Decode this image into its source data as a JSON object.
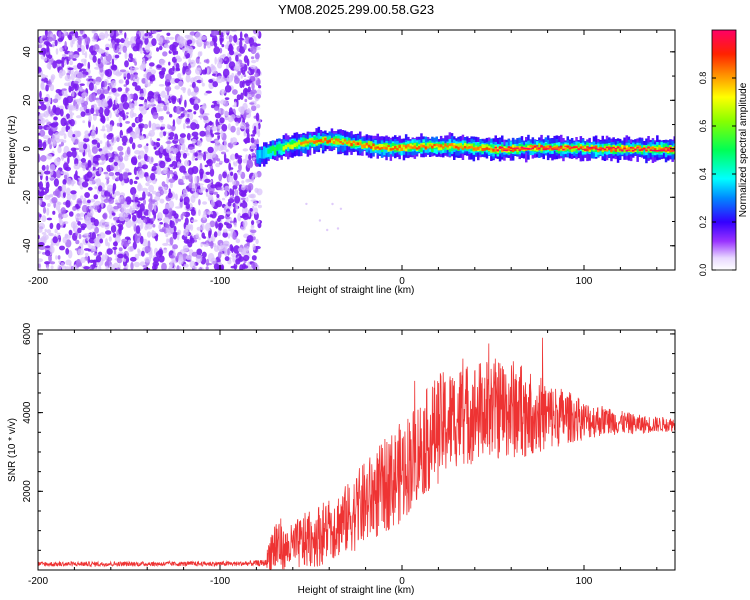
{
  "title": "YM08.2025.299.00.58.G23",
  "chart_data": [
    {
      "type": "heatmap",
      "title": "YM08.2025.299.00.58.G23",
      "xlabel": "Height of straight line (km)",
      "ylabel": "Frequency (Hz)",
      "xlim": [
        -200,
        150
      ],
      "ylim": [
        -50,
        49
      ],
      "xticks": [
        -200,
        -100,
        0,
        100
      ],
      "yticks": [
        -40,
        -20,
        0,
        20,
        40
      ],
      "noise_region_x": [
        -200,
        -80
      ],
      "ridge": {
        "description": "Doppler frequency ridge (narrow band of high amplitude)",
        "x": [
          -80,
          -70,
          -60,
          -50,
          -40,
          -30,
          -20,
          -10,
          0,
          10,
          20,
          30,
          40,
          50,
          60,
          70,
          80,
          90,
          100,
          110,
          120,
          130,
          140,
          150
        ],
        "y": [
          -3,
          0,
          1.5,
          3,
          3.5,
          2.5,
          1.5,
          0.5,
          0.5,
          1,
          1,
          1,
          0.5,
          0,
          0,
          0.5,
          0.5,
          0.3,
          0,
          0,
          0,
          0,
          -0.2,
          -0.3
        ],
        "peak_amplitude": [
          0.35,
          0.55,
          0.75,
          0.9,
          0.95,
          0.9,
          0.85,
          0.85,
          0.85,
          0.9,
          0.9,
          0.9,
          0.9,
          0.95,
          0.95,
          0.95,
          0.95,
          0.95,
          1.0,
          1.0,
          1.0,
          0.95,
          0.95,
          0.95
        ]
      },
      "colorbar": {
        "label": "Normalized spectral amplitude",
        "range": [
          0,
          1
        ],
        "ticks": [
          "0.0",
          "0.2",
          "0.4",
          "0.6",
          "0.8"
        ],
        "tick_values": [
          0,
          0.2,
          0.4,
          0.6,
          0.8
        ]
      }
    },
    {
      "type": "line",
      "xlabel": "Height of straight line (km)",
      "ylabel": "SNR (10 * v/v)",
      "xlim": [
        -200,
        150
      ],
      "ylim": [
        0,
        6100
      ],
      "xticks": [
        -200,
        -100,
        0,
        100
      ],
      "yticks": [
        2000,
        4000,
        6000
      ],
      "color": "#ee3333",
      "envelope": {
        "x": [
          -200,
          -90,
          -75,
          -72,
          -68,
          -65,
          -55,
          -45,
          -30,
          -20,
          -10,
          0,
          10,
          20,
          30,
          40,
          50,
          60,
          70,
          80,
          90,
          100,
          110,
          120,
          130,
          140,
          150
        ],
        "mean": [
          150,
          160,
          180,
          500,
          700,
          500,
          700,
          900,
          1300,
          1700,
          2100,
          2500,
          3100,
          3600,
          3900,
          4000,
          4100,
          4100,
          4000,
          3900,
          3900,
          3800,
          3800,
          3750,
          3700,
          3700,
          3700
        ],
        "spread": [
          60,
          60,
          80,
          600,
          900,
          500,
          700,
          800,
          900,
          1100,
          1200,
          1300,
          1300,
          1400,
          1300,
          1300,
          1300,
          1300,
          1100,
          900,
          700,
          500,
          400,
          300,
          250,
          200,
          180
        ]
      },
      "max_value": 6050
    }
  ]
}
